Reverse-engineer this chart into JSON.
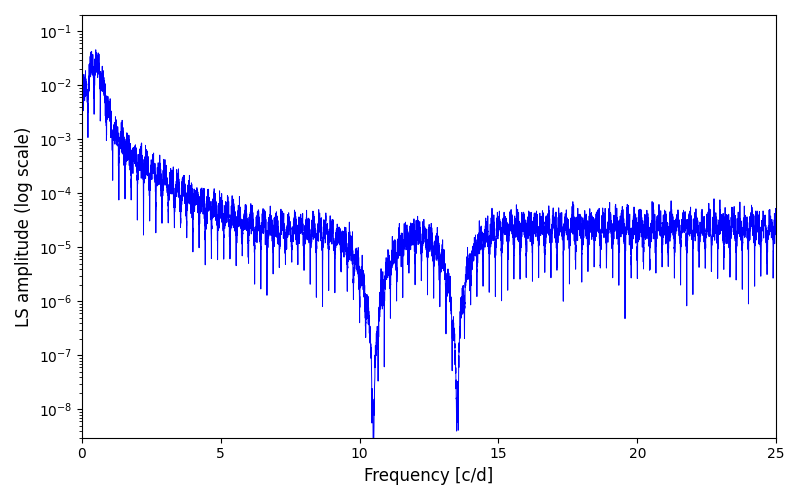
{
  "xlabel": "Frequency [c/d]",
  "ylabel": "LS amplitude (log scale)",
  "xlim": [
    0,
    25
  ],
  "ylim": [
    3e-09,
    0.2
  ],
  "line_color": "blue",
  "line_width": 0.7,
  "figsize": [
    8.0,
    5.0
  ],
  "dpi": 100,
  "seed": 0,
  "n_points": 8000,
  "freq_max": 25.0
}
